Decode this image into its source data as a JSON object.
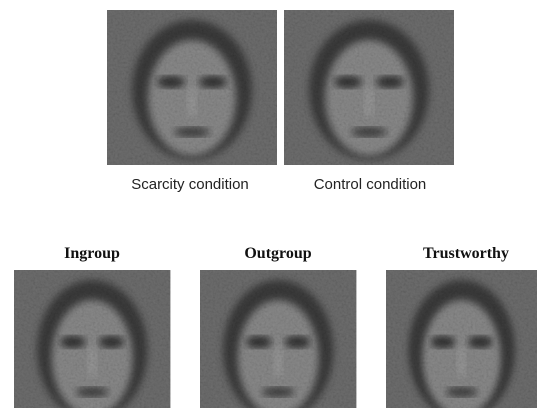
{
  "top_panels": [
    {
      "label": "Scarcity condition"
    },
    {
      "label": "Control condition"
    }
  ],
  "bottom_panels": [
    {
      "title": "Ingroup"
    },
    {
      "title": "Outgroup"
    },
    {
      "title": "Trustworthy"
    }
  ]
}
